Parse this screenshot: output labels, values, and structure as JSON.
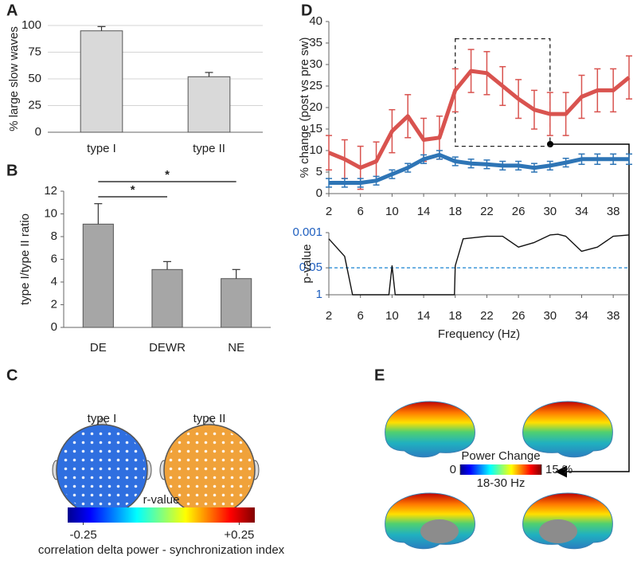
{
  "chart_data": [
    {
      "type": "bar",
      "panel": "A",
      "ylabel": "% large slow waves",
      "categories": [
        "type I",
        "type II"
      ],
      "values": [
        95,
        52
      ],
      "errors": [
        4,
        4
      ],
      "color": "#d9d9d9",
      "ylim": [
        0,
        100
      ],
      "yticks": [
        0,
        25,
        50,
        75,
        100
      ],
      "grid": true
    },
    {
      "type": "bar",
      "panel": "B",
      "ylabel": "type I/type II ratio",
      "categories": [
        "DE",
        "DEWR",
        "NE"
      ],
      "values": [
        9.1,
        5.1,
        4.3
      ],
      "errors": [
        1.8,
        0.7,
        0.8
      ],
      "color": "#a6a6a6",
      "ylim": [
        0,
        12
      ],
      "yticks": [
        0,
        2,
        4,
        6,
        8,
        10,
        12
      ],
      "grid": false,
      "significance": [
        "*",
        "*"
      ]
    },
    {
      "type": "topomap",
      "panel": "C",
      "titles": [
        "type I",
        "type II"
      ],
      "colors": [
        "#2f6fe0",
        "#f0a23a"
      ],
      "colorbar": {
        "label": "r-value",
        "lim": [
          -0.3,
          0.3
        ],
        "ticks": [
          -0.25,
          {
            "value": 0.25,
            "label": "+0.25"
          }
        ],
        "caption": "correlation delta power - synchronization index"
      }
    },
    {
      "type": "line",
      "panel": "D",
      "ylabel": "% change (post vs pre sw)",
      "x": [
        2,
        4,
        6,
        8,
        10,
        12,
        14,
        16,
        18,
        20,
        22,
        24,
        26,
        28,
        30,
        32,
        34,
        36,
        38,
        40
      ],
      "series": [
        {
          "color": "#d9534f",
          "values": [
            9.5,
            8,
            6,
            7.5,
            14.5,
            18,
            12.5,
            13,
            24,
            28.5,
            28,
            25,
            22,
            19.5,
            18.5,
            18.5,
            22.5,
            24,
            24,
            27
          ],
          "errors": [
            4,
            4.5,
            5,
            4.5,
            5,
            5,
            5,
            5,
            5,
            5,
            5,
            4.5,
            4.5,
            4.5,
            5,
            5,
            5,
            5,
            5,
            5
          ]
        },
        {
          "color": "#2e75b6",
          "values": [
            2.5,
            2.5,
            2.5,
            3,
            4.5,
            6,
            8,
            9,
            7.5,
            7,
            6.8,
            6.5,
            6.5,
            6,
            6.5,
            7.2,
            8,
            8,
            8,
            8
          ],
          "errors": [
            1,
            1,
            1,
            1,
            1,
            1,
            1,
            1,
            1,
            1,
            1,
            1,
            1,
            1,
            1,
            1,
            1.2,
            1.2,
            1.2,
            1.2
          ]
        }
      ],
      "xlim": [
        2,
        40
      ],
      "xticks": [
        2,
        6,
        10,
        14,
        18,
        22,
        26,
        30,
        34,
        38
      ],
      "ylim": [
        0,
        40
      ],
      "yticks": [
        0,
        5,
        10,
        15,
        20,
        25,
        30,
        35,
        40
      ],
      "box": {
        "x": [
          18,
          30
        ],
        "y": [
          11,
          36
        ]
      }
    },
    {
      "type": "line",
      "ylabel": "p-value",
      "xlabel": "Frequency (Hz)",
      "log": true,
      "x": [
        2,
        4,
        5,
        9.6,
        10,
        10.4,
        17.9,
        18,
        19,
        22,
        24,
        26,
        28,
        30,
        31,
        32,
        34,
        36,
        38,
        40
      ],
      "values": [
        0.002,
        0.014,
        1,
        1,
        0.04,
        1,
        1,
        0.04,
        0.002,
        0.0015,
        0.0015,
        0.005,
        0.003,
        0.0013,
        0.0012,
        0.0015,
        0.008,
        0.005,
        0.0015,
        0.0013
      ],
      "color": "#111111",
      "tick_color": "#1f5fbf",
      "hline": 0.05,
      "hline_color": "#2e8fd6",
      "xlim": [
        2,
        40
      ],
      "xticks": [
        2,
        6,
        10,
        14,
        18,
        22,
        26,
        30,
        34,
        38
      ],
      "ylim": [
        1,
        0.001
      ],
      "yticks": [
        1,
        0.05,
        0.001
      ]
    },
    {
      "type": "brain",
      "panel": "E",
      "colorbar": {
        "title": "Power Change",
        "lim": [
          0,
          15
        ],
        "ticks": [
          0,
          {
            "value": 15,
            "label": "15 %"
          }
        ],
        "caption": "18-30 Hz"
      }
    }
  ]
}
